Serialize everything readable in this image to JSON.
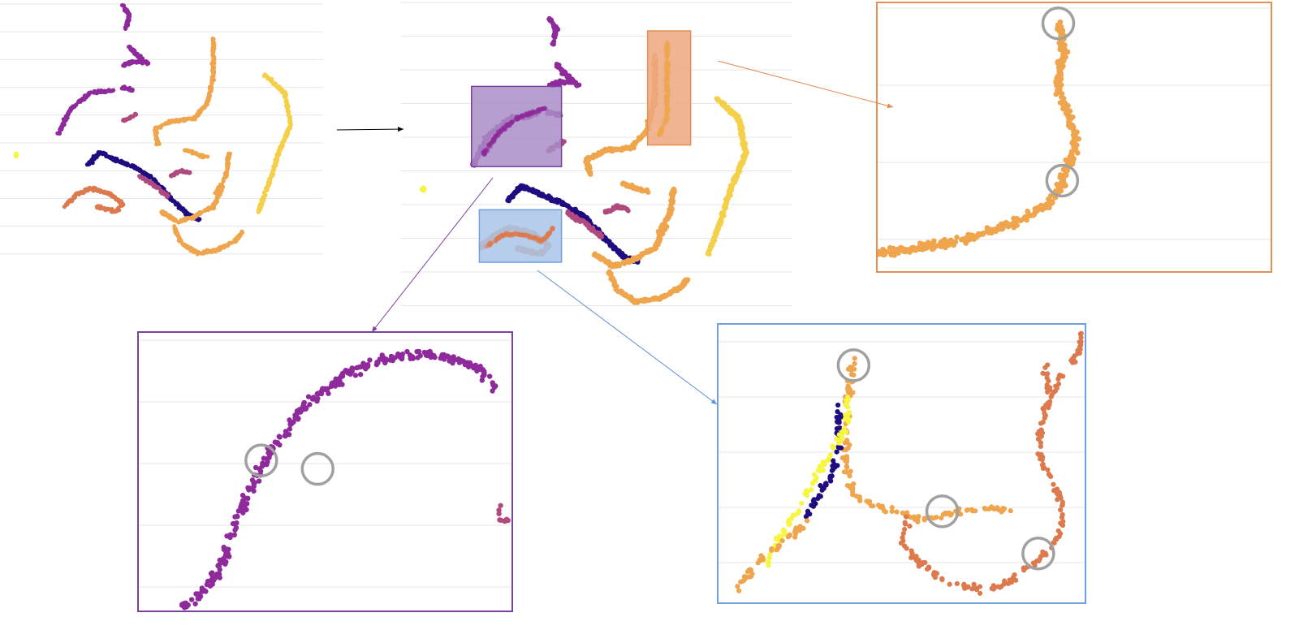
{
  "colors": {
    "background": "#ffffff",
    "gridline": "#e6e6e6",
    "navy": "#1f0c80",
    "purple": "#8e2a9b",
    "magenta": "#b04a7e",
    "coral": "#dc7a4e",
    "orange": "#efa54d",
    "gold": "#f4d04a",
    "yellow": "#f5f542",
    "circle": "#a0a0a0",
    "orange_frame": "#e58f55",
    "orange_fill": "#eda77f",
    "purple_frame": "#7d3fa2",
    "purple_fill": "#a98dc6",
    "blue_frame": "#6f9fe0",
    "blue_fill": "#a9c5e8",
    "arrow_black": "#000000",
    "arrow_orange": "#e5884f",
    "arrow_purple": "#7d3fa2",
    "arrow_blue": "#5b8fd8"
  },
  "chart_data": [
    {
      "type": "scatter",
      "panel": "overview-embedding",
      "grid": true,
      "title": "",
      "xlabel": "",
      "ylabel": "",
      "clusters": [
        {
          "color": "purple",
          "shape": "curve",
          "points": [
            [
              0.38,
              0.02
            ],
            [
              0.4,
              0.06
            ],
            [
              0.39,
              0.11
            ]
          ]
        },
        {
          "color": "purple",
          "shape": "curve",
          "points": [
            [
              0.4,
              0.18
            ],
            [
              0.43,
              0.22
            ],
            [
              0.46,
              0.25
            ]
          ]
        },
        {
          "color": "purple",
          "shape": "curve",
          "points": [
            [
              0.38,
              0.25
            ],
            [
              0.41,
              0.24
            ],
            [
              0.44,
              0.24
            ]
          ]
        },
        {
          "color": "purple",
          "shape": "curve",
          "points": [
            [
              0.38,
              0.34
            ],
            [
              0.41,
              0.35
            ]
          ]
        },
        {
          "color": "purple",
          "shape": "curve",
          "points": [
            [
              0.18,
              0.52
            ],
            [
              0.22,
              0.42
            ],
            [
              0.28,
              0.36
            ],
            [
              0.35,
              0.35
            ]
          ]
        },
        {
          "color": "magenta",
          "shape": "curve",
          "points": [
            [
              0.38,
              0.47
            ],
            [
              0.41,
              0.45
            ],
            [
              0.42,
              0.44
            ]
          ]
        },
        {
          "color": "orange",
          "shape": "curve",
          "points": [
            [
              0.66,
              0.15
            ],
            [
              0.66,
              0.3
            ],
            [
              0.64,
              0.4
            ],
            [
              0.6,
              0.46
            ],
            [
              0.53,
              0.47
            ],
            [
              0.48,
              0.5
            ],
            [
              0.49,
              0.56
            ]
          ]
        },
        {
          "color": "orange",
          "shape": "curve",
          "points": [
            [
              0.57,
              0.58
            ],
            [
              0.64,
              0.61
            ]
          ]
        },
        {
          "color": "orange",
          "shape": "curve",
          "points": [
            [
              0.71,
              0.59
            ],
            [
              0.7,
              0.68
            ],
            [
              0.67,
              0.75
            ]
          ]
        },
        {
          "color": "gold",
          "shape": "curve",
          "points": [
            [
              0.82,
              0.29
            ],
            [
              0.88,
              0.36
            ],
            [
              0.9,
              0.48
            ],
            [
              0.86,
              0.6
            ],
            [
              0.83,
              0.72
            ],
            [
              0.8,
              0.82
            ]
          ]
        },
        {
          "color": "yellow",
          "shape": "blob",
          "points": [
            [
              0.05,
              0.6
            ]
          ]
        },
        {
          "color": "navy",
          "shape": "curve",
          "points": [
            [
              0.27,
              0.64
            ],
            [
              0.31,
              0.59
            ],
            [
              0.36,
              0.62
            ],
            [
              0.42,
              0.65
            ],
            [
              0.47,
              0.69
            ],
            [
              0.53,
              0.77
            ],
            [
              0.58,
              0.83
            ],
            [
              0.62,
              0.85
            ]
          ]
        },
        {
          "color": "magenta",
          "shape": "curve",
          "points": [
            [
              0.43,
              0.68
            ],
            [
              0.48,
              0.72
            ],
            [
              0.52,
              0.76
            ]
          ]
        },
        {
          "color": "coral",
          "shape": "curve",
          "points": [
            [
              0.2,
              0.8
            ],
            [
              0.24,
              0.75
            ],
            [
              0.28,
              0.73
            ],
            [
              0.34,
              0.75
            ],
            [
              0.38,
              0.79
            ],
            [
              0.36,
              0.82
            ],
            [
              0.3,
              0.8
            ]
          ]
        },
        {
          "color": "magenta",
          "shape": "curve",
          "points": [
            [
              0.53,
              0.68
            ],
            [
              0.56,
              0.66
            ],
            [
              0.59,
              0.67
            ]
          ]
        },
        {
          "color": "orange",
          "shape": "curve",
          "points": [
            [
              0.5,
              0.82
            ],
            [
              0.55,
              0.86
            ],
            [
              0.6,
              0.84
            ],
            [
              0.66,
              0.8
            ],
            [
              0.69,
              0.72
            ]
          ]
        },
        {
          "color": "orange",
          "shape": "curve",
          "points": [
            [
              0.54,
              0.88
            ],
            [
              0.56,
              0.94
            ],
            [
              0.61,
              0.98
            ],
            [
              0.67,
              0.97
            ],
            [
              0.73,
              0.93
            ],
            [
              0.75,
              0.9
            ]
          ]
        }
      ]
    },
    {
      "type": "scatter",
      "panel": "overview-with-selections",
      "grid": true,
      "title": "",
      "xlabel": "",
      "ylabel": "",
      "selections": [
        {
          "name": "purple-selection",
          "color": "purple",
          "x_range": [
            0.18,
            0.41
          ],
          "y_range": [
            0.28,
            0.54
          ]
        },
        {
          "name": "orange-selection",
          "color": "orange",
          "x_range": [
            0.63,
            0.74
          ],
          "y_range": [
            0.1,
            0.47
          ]
        },
        {
          "name": "blue-selection",
          "color": "blue",
          "x_range": [
            0.2,
            0.41
          ],
          "y_range": [
            0.68,
            0.85
          ]
        }
      ]
    },
    {
      "type": "scatter",
      "panel": "zoom-orange",
      "grid": true,
      "title": "",
      "xlabel": "",
      "ylabel": "",
      "highlight_circles": [
        [
          0.46,
          0.08
        ],
        [
          0.47,
          0.66
        ]
      ],
      "clusters": [
        {
          "color": "orange",
          "shape": "curve",
          "points": [
            [
              0.46,
              0.08
            ],
            [
              0.47,
              0.14
            ],
            [
              0.47,
              0.22
            ],
            [
              0.46,
              0.3
            ],
            [
              0.47,
              0.36
            ],
            [
              0.49,
              0.42
            ],
            [
              0.5,
              0.5
            ],
            [
              0.5,
              0.56
            ],
            [
              0.48,
              0.62
            ],
            [
              0.47,
              0.68
            ],
            [
              0.44,
              0.74
            ],
            [
              0.38,
              0.8
            ],
            [
              0.3,
              0.84
            ],
            [
              0.22,
              0.88
            ],
            [
              0.14,
              0.9
            ],
            [
              0.06,
              0.92
            ],
            [
              0.0,
              0.93
            ]
          ]
        }
      ]
    },
    {
      "type": "scatter",
      "panel": "zoom-purple",
      "grid": true,
      "title": "",
      "xlabel": "",
      "ylabel": "",
      "highlight_circles": [
        [
          0.33,
          0.46
        ],
        [
          0.48,
          0.49
        ]
      ],
      "clusters": [
        {
          "color": "purple",
          "shape": "curve",
          "points": [
            [
              0.12,
              0.98
            ],
            [
              0.17,
              0.94
            ],
            [
              0.22,
              0.84
            ],
            [
              0.26,
              0.7
            ],
            [
              0.3,
              0.56
            ],
            [
              0.36,
              0.42
            ],
            [
              0.45,
              0.26
            ],
            [
              0.55,
              0.16
            ],
            [
              0.65,
              0.1
            ],
            [
              0.78,
              0.08
            ],
            [
              0.9,
              0.12
            ],
            [
              0.95,
              0.2
            ]
          ]
        },
        {
          "color": "magenta",
          "shape": "blob",
          "points": [
            [
              0.96,
              0.63
            ],
            [
              0.98,
              0.68
            ]
          ]
        }
      ]
    },
    {
      "type": "scatter",
      "panel": "zoom-blue",
      "grid": true,
      "title": "",
      "xlabel": "",
      "ylabel": "",
      "highlight_circles": [
        [
          0.37,
          0.15
        ],
        [
          0.61,
          0.67
        ],
        [
          0.87,
          0.82
        ]
      ],
      "clusters": [
        {
          "color": "orange",
          "shape": "curve",
          "points": [
            [
              0.37,
              0.12
            ],
            [
              0.36,
              0.22
            ],
            [
              0.35,
              0.35
            ],
            [
              0.35,
              0.48
            ],
            [
              0.36,
              0.58
            ],
            [
              0.4,
              0.64
            ],
            [
              0.48,
              0.67
            ],
            [
              0.55,
              0.7
            ],
            [
              0.62,
              0.68
            ],
            [
              0.72,
              0.66
            ],
            [
              0.8,
              0.66
            ]
          ]
        },
        {
          "color": "navy",
          "shape": "curve",
          "points": [
            [
              0.33,
              0.28
            ],
            [
              0.33,
              0.45
            ],
            [
              0.31,
              0.55
            ],
            [
              0.27,
              0.62
            ],
            [
              0.24,
              0.7
            ]
          ]
        },
        {
          "color": "yellow",
          "shape": "curve",
          "points": [
            [
              0.35,
              0.25
            ],
            [
              0.35,
              0.38
            ],
            [
              0.14,
              0.83
            ],
            [
              0.13,
              0.86
            ]
          ]
        },
        {
          "color": "orange",
          "shape": "curve",
          "points": [
            [
              0.05,
              0.95
            ],
            [
              0.08,
              0.9
            ],
            [
              0.12,
              0.84
            ],
            [
              0.18,
              0.78
            ],
            [
              0.25,
              0.7
            ]
          ]
        },
        {
          "color": "coral",
          "shape": "curve",
          "points": [
            [
              0.99,
              0.02
            ],
            [
              0.98,
              0.1
            ],
            [
              0.93,
              0.2
            ],
            [
              0.89,
              0.3
            ],
            [
              0.87,
              0.45
            ],
            [
              0.9,
              0.55
            ],
            [
              0.94,
              0.65
            ],
            [
              0.93,
              0.75
            ],
            [
              0.88,
              0.83
            ],
            [
              0.8,
              0.92
            ],
            [
              0.72,
              0.95
            ],
            [
              0.62,
              0.92
            ],
            [
              0.55,
              0.85
            ],
            [
              0.5,
              0.78
            ],
            [
              0.52,
              0.7
            ]
          ]
        },
        {
          "color": "coral",
          "shape": "curve",
          "points": [
            [
              0.89,
              0.15
            ],
            [
              0.9,
              0.25
            ]
          ]
        }
      ]
    }
  ]
}
